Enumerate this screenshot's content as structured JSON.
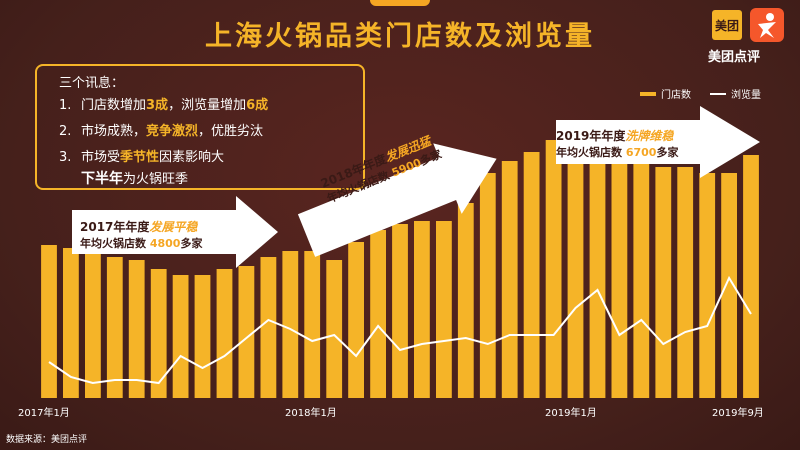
{
  "title": "上海火锅品类门店数及浏览量",
  "logo": {
    "box_text": "美团",
    "brand_text": "美团点评"
  },
  "info": {
    "heading": "三个讯息：",
    "items": [
      {
        "num": "1.",
        "text_a": "门店数增加",
        "hl_a": "3成",
        "text_b": "，浏览量增加",
        "hl_b": "6成"
      },
      {
        "num": "2.",
        "text_a": "市场成熟，",
        "hl_a": "竞争激烈",
        "text_b": "，优胜劣汰",
        "hl_b": ""
      },
      {
        "num": "3.",
        "text_a": "市场受",
        "hl_a": "季节性",
        "text_b": "因素影响大",
        "hl_b": ""
      }
    ],
    "line4_a": "下半年",
    "line4_b": "为火锅旺季"
  },
  "legend": {
    "bar": "门店数",
    "line": "浏览量"
  },
  "annotations": [
    {
      "line1_a": "2017年年度",
      "line1_hl": "发展平稳",
      "line2_a": "年均火锅店数 ",
      "line2_cnt": "4800",
      "line2_b": "多家"
    },
    {
      "line1_a": "2018年年度",
      "line1_hl": "发展迅猛",
      "line2_a": "年均火锅店数 ",
      "line2_cnt": "5900",
      "line2_b": "多家"
    },
    {
      "line1_a": "2019年年度",
      "line1_hl": "洗牌维稳",
      "line2_a": "年均火锅店数 ",
      "line2_cnt": "6700",
      "line2_b": "多家"
    }
  ],
  "x_labels": [
    "2017年1月",
    "2018年1月",
    "2019年1月",
    "2019年9月"
  ],
  "source": "数据来源：美团点评",
  "colors": {
    "bar": "#f5b428",
    "line": "#ffffff",
    "background": "#4a1e1a",
    "arrow": "#ffffff"
  },
  "chart_data": {
    "type": "bar",
    "categories": [
      "2017-01",
      "2017-02",
      "2017-03",
      "2017-04",
      "2017-05",
      "2017-06",
      "2017-07",
      "2017-08",
      "2017-09",
      "2017-10",
      "2017-11",
      "2017-12",
      "2018-01",
      "2018-02",
      "2018-03",
      "2018-04",
      "2018-05",
      "2018-06",
      "2018-07",
      "2018-08",
      "2018-09",
      "2018-10",
      "2018-11",
      "2018-12",
      "2019-01",
      "2019-02",
      "2019-03",
      "2019-04",
      "2019-05",
      "2019-06",
      "2019-07",
      "2019-08",
      "2019-09"
    ],
    "series": [
      {
        "name": "门店数",
        "type": "bar",
        "values": [
          51,
          50,
          50,
          47,
          46,
          43,
          41,
          41,
          43,
          44,
          47,
          49,
          49,
          46,
          52,
          56,
          58,
          59,
          59,
          65,
          75,
          79,
          82,
          86,
          85,
          81,
          80,
          78,
          77,
          77,
          75,
          75,
          81
        ]
      },
      {
        "name": "浏览量",
        "type": "line",
        "values": [
          12,
          7,
          5,
          6,
          6,
          5,
          14,
          10,
          14,
          20,
          26,
          23,
          19,
          21,
          14,
          24,
          16,
          18,
          19,
          20,
          18,
          21,
          21,
          21,
          30,
          36,
          21,
          26,
          18,
          22,
          24,
          40,
          28
        ]
      }
    ],
    "ylim": [
      0,
      100
    ],
    "grid": false,
    "legend_position": "top-right"
  }
}
